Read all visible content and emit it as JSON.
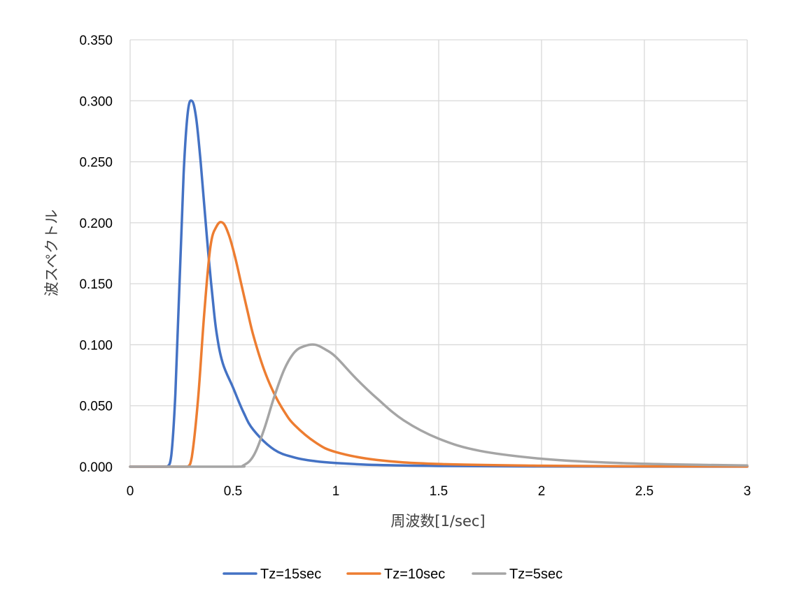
{
  "chart_data": {
    "type": "line",
    "title": "",
    "xlabel": "周波数[1/sec]",
    "ylabel": "波スペクトル",
    "xlim": [
      0,
      3
    ],
    "ylim": [
      0,
      0.35
    ],
    "x_ticks": [
      "0",
      "0.5",
      "1",
      "1.5",
      "2",
      "2.5",
      "3"
    ],
    "y_ticks": [
      "0.000",
      "0.050",
      "0.100",
      "0.150",
      "0.200",
      "0.250",
      "0.300",
      "0.350"
    ],
    "grid": true,
    "legend_position": "bottom",
    "series": [
      {
        "name": "Tz=15sec",
        "color": "#4472c4",
        "x": [
          0,
          0.15,
          0.18,
          0.2,
          0.22,
          0.24,
          0.26,
          0.28,
          0.3,
          0.32,
          0.34,
          0.36,
          0.38,
          0.4,
          0.42,
          0.45,
          0.5,
          0.55,
          0.6,
          0.7,
          0.8,
          0.9,
          1.0,
          1.2,
          1.5,
          2.0,
          2.5,
          3.0
        ],
        "y": [
          0,
          0,
          0.0,
          0.009,
          0.06,
          0.15,
          0.24,
          0.29,
          0.3,
          0.287,
          0.255,
          0.215,
          0.175,
          0.14,
          0.11,
          0.085,
          0.065,
          0.045,
          0.03,
          0.014,
          0.0075,
          0.0045,
          0.003,
          0.0014,
          0.0006,
          0.0002,
          8e-05,
          4e-05
        ]
      },
      {
        "name": "Tz=10sec",
        "color": "#ed7d31",
        "x": [
          0,
          0.25,
          0.28,
          0.3,
          0.33,
          0.36,
          0.39,
          0.42,
          0.45,
          0.48,
          0.51,
          0.54,
          0.57,
          0.6,
          0.65,
          0.7,
          0.75,
          0.8,
          0.9,
          1.0,
          1.2,
          1.5,
          2.0,
          2.5,
          3.0
        ],
        "y": [
          0,
          0,
          0.0,
          0.008,
          0.055,
          0.125,
          0.18,
          0.197,
          0.2,
          0.19,
          0.172,
          0.15,
          0.128,
          0.107,
          0.08,
          0.06,
          0.045,
          0.034,
          0.02,
          0.012,
          0.0055,
          0.0022,
          0.0008,
          0.0003,
          0.00015
        ]
      },
      {
        "name": "Tz=5sec",
        "color": "#a5a5a5",
        "x": [
          0,
          0.5,
          0.55,
          0.6,
          0.65,
          0.7,
          0.75,
          0.8,
          0.85,
          0.9,
          0.95,
          1.0,
          1.1,
          1.2,
          1.33,
          1.5,
          1.7,
          2.0,
          2.3,
          2.6,
          3.0
        ],
        "y": [
          0,
          0,
          0.001,
          0.009,
          0.03,
          0.057,
          0.08,
          0.094,
          0.099,
          0.1,
          0.096,
          0.09,
          0.072,
          0.056,
          0.038,
          0.023,
          0.013,
          0.0065,
          0.0035,
          0.002,
          0.001
        ]
      }
    ]
  }
}
